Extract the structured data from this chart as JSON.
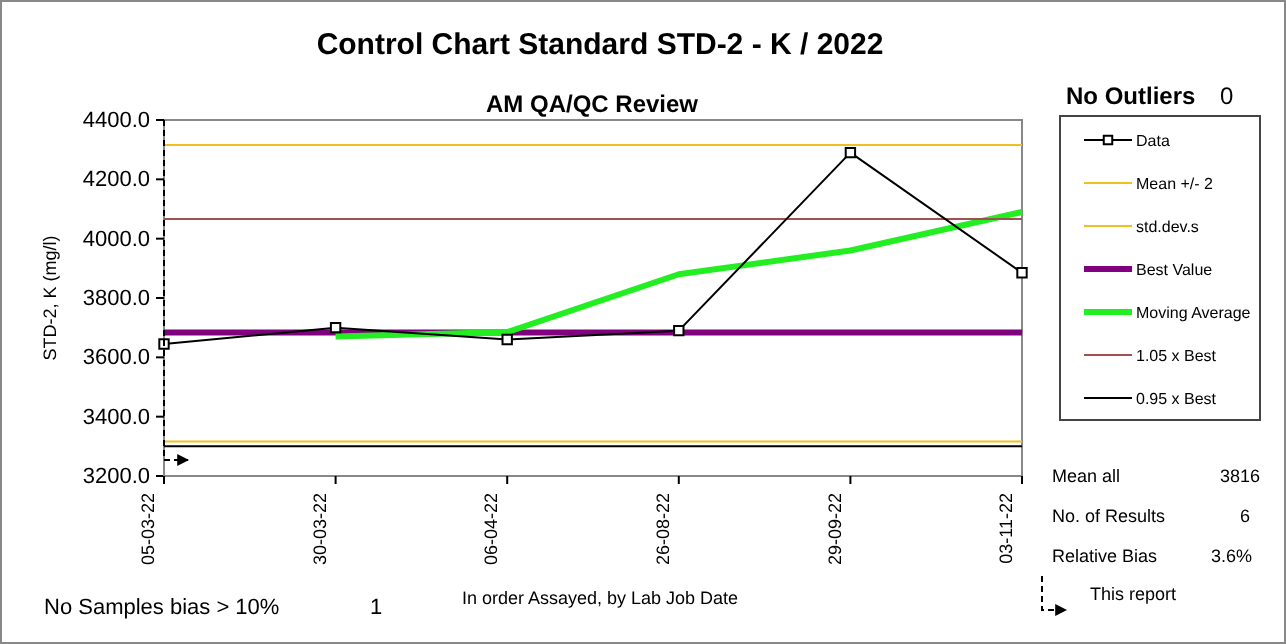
{
  "chart_data": {
    "type": "line",
    "title": "Control Chart Standard STD-2 - K / 2022",
    "subtitle": "AM QA/QC Review",
    "xlabel": "In order Assayed, by Lab Job Date",
    "ylabel": "STD-2, K (mg/l)",
    "categories": [
      "05-03-22",
      "30-03-22",
      "06-04-22",
      "26-08-22",
      "29-09-22",
      "03-11-22"
    ],
    "series": [
      {
        "name": "Data",
        "color": "#000000",
        "marker": "square",
        "values": [
          3645,
          3700,
          3660,
          3690,
          4290,
          3885
        ]
      },
      {
        "name": "Mean +/- 2",
        "color": "#f0c020",
        "marker": "none",
        "values": [
          4316,
          4316,
          4316,
          4316,
          4316,
          4316
        ]
      },
      {
        "name": "std.dev.s",
        "color": "#f0c020",
        "marker": "none",
        "values": [
          3316,
          3316,
          3316,
          3316,
          3316,
          3316
        ]
      },
      {
        "name": "Best Value",
        "color": "#800080",
        "marker": "none",
        "values": [
          3684,
          3684,
          3684,
          3684,
          3684,
          3684
        ]
      },
      {
        "name": "Moving Average",
        "color": "#22ee22",
        "marker": "none",
        "values": [
          null,
          3670,
          3685,
          3880,
          3960,
          4090
        ]
      },
      {
        "name": "1.05 x Best",
        "color": "#a05050",
        "marker": "none",
        "values": [
          4066,
          4066,
          4066,
          4066,
          4066,
          4066
        ]
      },
      {
        "name": "0.95 x Best",
        "color": "#000000",
        "marker": "none",
        "values": [
          3300,
          3300,
          3300,
          3300,
          3300,
          3300
        ]
      }
    ],
    "ylim": [
      3200,
      4400
    ],
    "yticks": [
      {
        "value": 3200,
        "label": "3200.0"
      },
      {
        "value": 3400,
        "label": "3400.0"
      },
      {
        "value": 3600,
        "label": "3600.0"
      },
      {
        "value": 3800,
        "label": "3800.0"
      },
      {
        "value": 4000,
        "label": "4000.0"
      },
      {
        "value": 4200,
        "label": "4200.0"
      },
      {
        "value": 4400,
        "label": "4400.0"
      }
    ],
    "legend": "right",
    "grid": false,
    "annotations": [
      "No Outliers",
      "0",
      "Mean all",
      "3816",
      "No. of Results",
      "6",
      "Relative Bias",
      "3.6%",
      "No Samples bias > 10%",
      "1",
      "This report"
    ]
  }
}
